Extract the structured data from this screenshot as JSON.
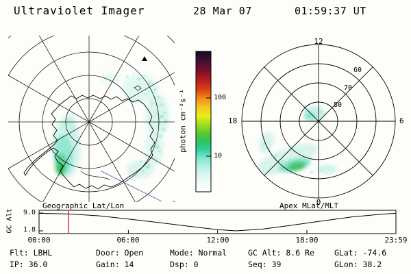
{
  "title": {
    "instrument": "Ultraviolet Imager",
    "date": "28 Mar 07",
    "time": "01:59:37 UT"
  },
  "colorbar": {
    "label": "photon cm⁻²s⁻¹",
    "tick_100": "100",
    "tick_10": "10"
  },
  "left_plot": {
    "caption": "Geographic Lat/Lon"
  },
  "right_plot": {
    "caption": "Apex MLat/MLT",
    "mlt_12": "12",
    "mlt_18": "18",
    "mlt_6": "6",
    "mlt_0": "0",
    "mlat_60": "60",
    "mlat_70": "70",
    "mlat_80": "80"
  },
  "timeline": {
    "ylabel": "GC Alt",
    "ytick_top": "9.0",
    "ytick_bottom": "1.8",
    "xticks": [
      "00:00",
      "06:00",
      "12:00",
      "18:00",
      "23:59"
    ]
  },
  "status": {
    "flt": "Flt: LBHL",
    "ip": "IP: 36.0",
    "door": "Door: Open",
    "gain": "Gain: 14",
    "mode": "Mode: Normal",
    "dsp": "Dsp: 0",
    "gc_alt": "GC Alt: 8.6 Re",
    "seq": "Seq: 39",
    "glat": "GLat: -74.6",
    "glon": "GLon: 38.2"
  },
  "chart_data": [
    {
      "id": "geographic_image",
      "type": "heatmap",
      "title": "Geographic Lat/Lon",
      "projection": "south polar (Antarctica), lat circles every ~10 deg, meridians every 30 deg",
      "description": "UV auroral photon flux image: bright cyan-green patch on dusk-side coast near 75-85S and diffuse speckled emission arc along the dawn side; faint terminator line lower right",
      "colorbar": {
        "label": "photon cm⁻²s⁻¹",
        "scale": "log",
        "ticks": [
          10,
          100
        ]
      }
    },
    {
      "id": "apex_image",
      "type": "heatmap",
      "title": "Apex MLat/MLT",
      "projection": "magnetic polar dial, MLT 0 bottom / 6 right / 12 top / 18 left",
      "mlat_rings": [
        80,
        70,
        60
      ],
      "description": "auroral oval emission: small cyan patch near the pole and cyan band with bright green core near 70 MLat between ~20 and ~01 MLT"
    },
    {
      "id": "gc_alt",
      "type": "line",
      "title": "GC Alt",
      "ylabel": "GC Alt",
      "ylim": [
        1.8,
        9.0
      ],
      "xlim": [
        "00:00",
        "23:59"
      ],
      "current_time": "01:59",
      "marker_color": "#cc1111",
      "points": [
        {
          "t": "00:00",
          "alt": 8.9
        },
        {
          "t": "02:00",
          "alt": 8.6
        },
        {
          "t": "04:00",
          "alt": 7.9
        },
        {
          "t": "06:00",
          "alt": 6.6
        },
        {
          "t": "08:00",
          "alt": 5.2
        },
        {
          "t": "10:00",
          "alt": 3.7
        },
        {
          "t": "12:00",
          "alt": 2.3
        },
        {
          "t": "13:15",
          "alt": 1.8
        },
        {
          "t": "15:00",
          "alt": 2.5
        },
        {
          "t": "17:00",
          "alt": 4.1
        },
        {
          "t": "19:00",
          "alt": 5.8
        },
        {
          "t": "21:00",
          "alt": 7.4
        },
        {
          "t": "23:00",
          "alt": 8.5
        },
        {
          "t": "23:59",
          "alt": 8.9
        }
      ]
    }
  ]
}
